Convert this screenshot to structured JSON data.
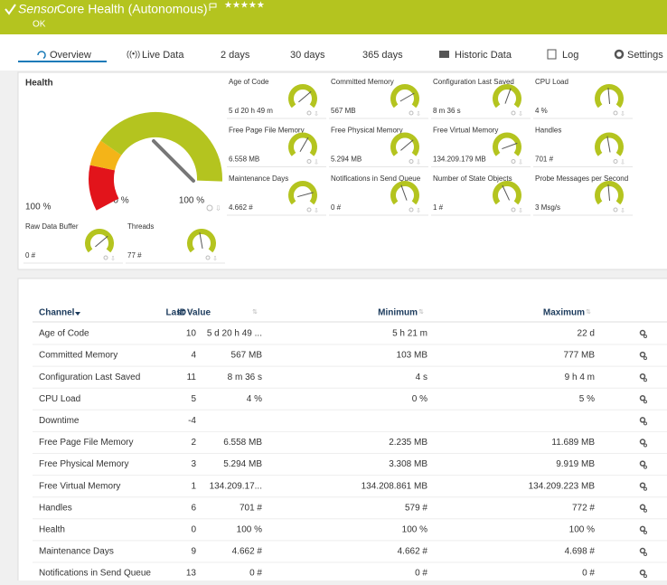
{
  "header": {
    "prefix": "Sensor",
    "title": "Core Health (Autonomous)",
    "status": "OK"
  },
  "tabs": [
    "Overview",
    "Live Data",
    "2  days",
    "30 days",
    "365 days",
    "Historic Data",
    "Log",
    "Settings"
  ],
  "main_gauge": {
    "title": "Health",
    "value": "100 %",
    "min": "0 %",
    "max": "100 %"
  },
  "gauges": [
    {
      "title": "Age of Code",
      "value": "5 d 20 h 49 m"
    },
    {
      "title": "Committed Memory",
      "value": "567 MB"
    },
    {
      "title": "Configuration Last Saved",
      "value": "8 m 36 s"
    },
    {
      "title": "CPU Load",
      "value": "4 %"
    },
    {
      "title": "Free Page File Memory",
      "value": "6.558 MB"
    },
    {
      "title": "Free Physical Memory",
      "value": "5.294 MB"
    },
    {
      "title": "Free Virtual Memory",
      "value": "134.209.179 MB"
    },
    {
      "title": "Handles",
      "value": "701 #"
    },
    {
      "title": "Maintenance Days",
      "value": "4.662 #"
    },
    {
      "title": "Notifications in Send Queue",
      "value": "0 #"
    },
    {
      "title": "Number of State Objects",
      "value": "1 #"
    },
    {
      "title": "Probe Messages per Second",
      "value": "3 Msg/s"
    },
    {
      "title": "Raw Data Buffer",
      "value": "0 #"
    },
    {
      "title": "Threads",
      "value": "77 #"
    }
  ],
  "table": {
    "columns": [
      "Channel",
      "ID",
      "Last Value",
      "Minimum",
      "Maximum"
    ],
    "rows": [
      [
        "Age of Code",
        10,
        "5 d 20 h 49 ...",
        "5 h 21 m",
        "22 d"
      ],
      [
        "Committed Memory",
        4,
        "567 MB",
        "103 MB",
        "777 MB"
      ],
      [
        "Configuration Last Saved",
        11,
        "8 m 36 s",
        "4 s",
        "9 h 4 m"
      ],
      [
        "CPU Load",
        5,
        "4 %",
        "0 %",
        "5 %"
      ],
      [
        "Downtime",
        -4,
        null,
        null,
        null
      ],
      [
        "Free Page File Memory",
        2,
        "6.558 MB",
        "2.235 MB",
        "11.689 MB"
      ],
      [
        "Free Physical Memory",
        3,
        "5.294 MB",
        "3.308 MB",
        "9.919 MB"
      ],
      [
        "Free Virtual Memory",
        1,
        "134.209.17...",
        "134.208.861 MB",
        "134.209.223 MB"
      ],
      [
        "Handles",
        6,
        "701 #",
        "579 #",
        "772 #"
      ],
      [
        "Health",
        0,
        "100 %",
        "100 %",
        "100 %"
      ],
      [
        "Maintenance Days",
        9,
        "4.662 #",
        "4.662 #",
        "4.698 #"
      ],
      [
        "Notifications in Send Queue",
        13,
        "0 #",
        "0 #",
        "0 #"
      ]
    ]
  }
}
